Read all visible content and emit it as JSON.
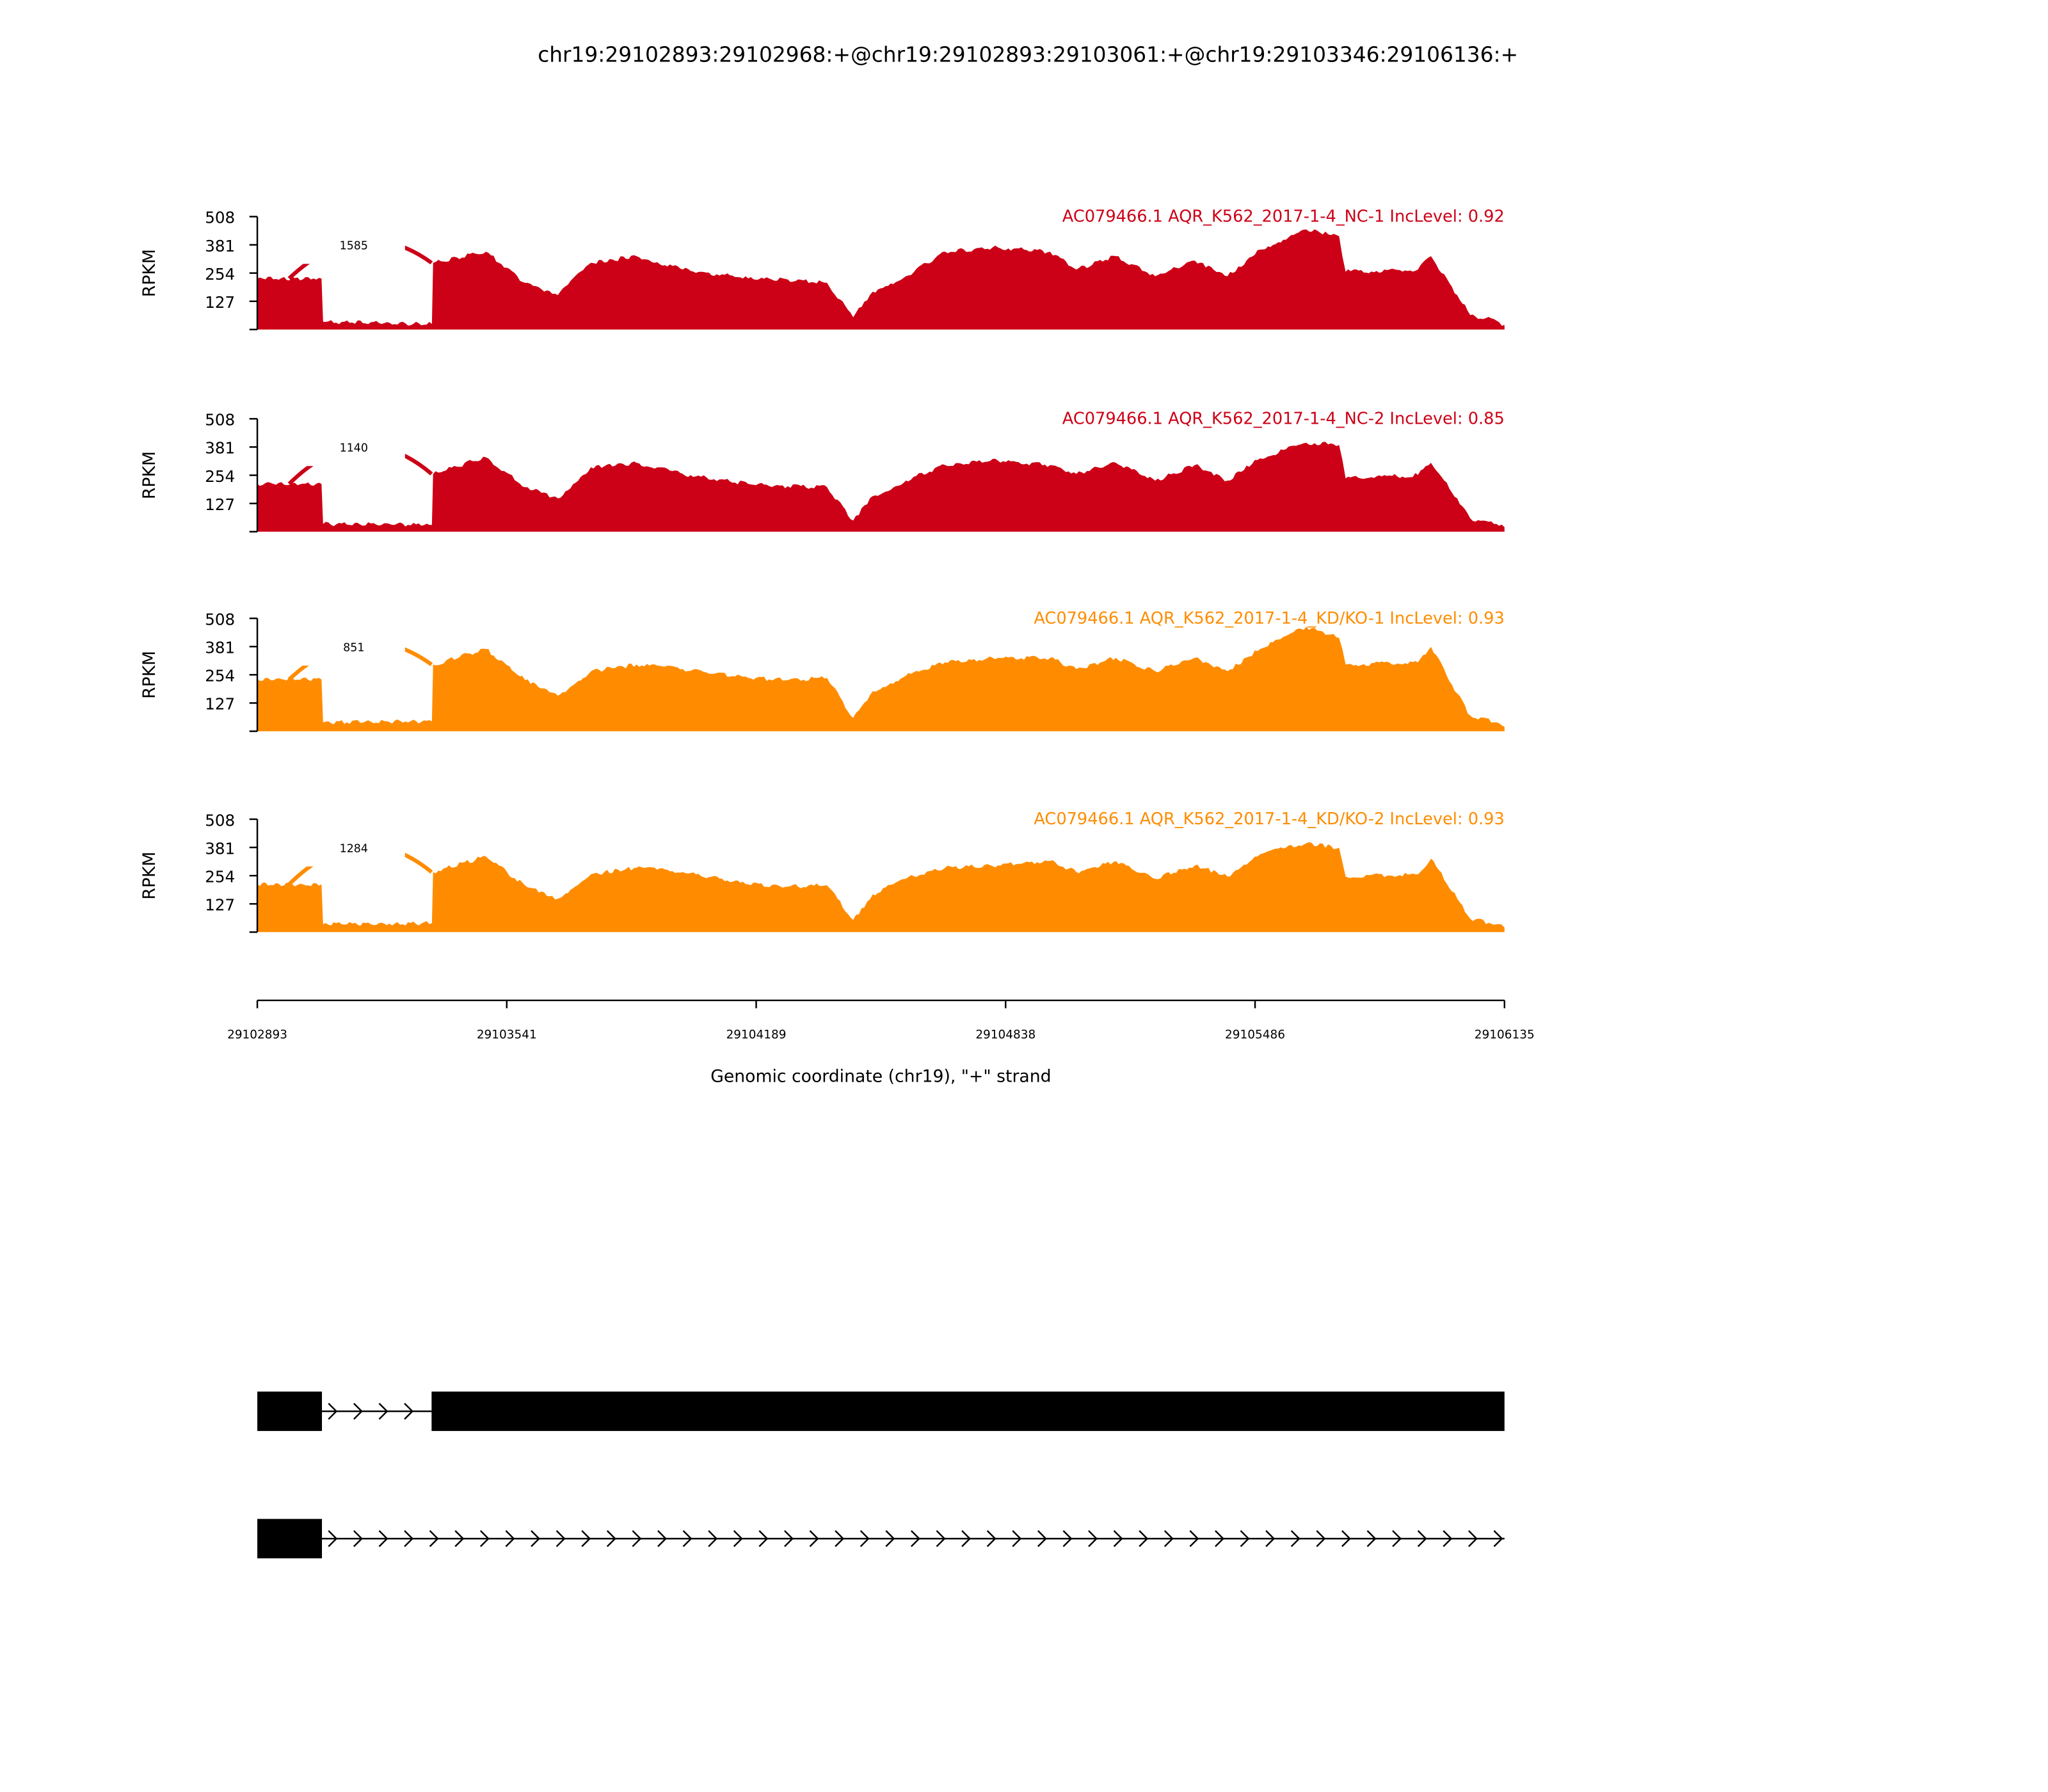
{
  "chart_data": {
    "type": "area",
    "title": "chr19:29102893:29102968:+@chr19:29102893:29103061:+@chr19:29103346:29106136:+",
    "xlabel": "Genomic coordinate (chr19), \"+\" strand",
    "ylabel": "RPKM",
    "xlim": [
      29102893,
      29106135
    ],
    "ylim": [
      0,
      508
    ],
    "x_ticks": [
      "29102893",
      "29103541",
      "29104189",
      "29104838",
      "29105486",
      "29106135"
    ],
    "y_ticks": [
      "127",
      "254",
      "381",
      "508"
    ],
    "positions": [
      29102893,
      29103060,
      29103064,
      29103347,
      29103350,
      29103487,
      29103589,
      29103674,
      29103760,
      29103879,
      29103999,
      29104169,
      29104272,
      29104374,
      29104442,
      29104493,
      29104579,
      29104681,
      29104818,
      29104954,
      29105022,
      29105125,
      29105227,
      29105330,
      29105415,
      29105500,
      29105620,
      29105705,
      29105722,
      29105910,
      29105944,
      29106012,
      29106046,
      29106114,
      29106135
    ],
    "series": [
      {
        "name": "AC079466.1 AQR_K562_2017-1-4_NC-1 IncLevel: 0.92",
        "color": "#cc0016",
        "junction": {
          "start": 29103061,
          "end": 29103346,
          "count": "1585"
        },
        "values": [
          230,
          230,
          35,
          25,
          300,
          350,
          210,
          155,
          300,
          330,
          270,
          230,
          225,
          210,
          55,
          170,
          240,
          350,
          370,
          350,
          270,
          330,
          240,
          310,
          240,
          360,
          450,
          420,
          260,
          270,
          330,
          155,
          65,
          40,
          20
        ]
      },
      {
        "name": "AC079466.1 AQR_K562_2017-1-4_NC-2 IncLevel: 0.85",
        "color": "#cc0016",
        "junction": {
          "start": 29103061,
          "end": 29103346,
          "count": "1140"
        },
        "values": [
          215,
          215,
          35,
          30,
          260,
          335,
          200,
          150,
          290,
          310,
          260,
          215,
          205,
          200,
          50,
          160,
          230,
          300,
          320,
          300,
          260,
          310,
          230,
          300,
          230,
          330,
          400,
          390,
          240,
          255,
          310,
          150,
          60,
          35,
          20
        ]
      },
      {
        "name": "AC079466.1 AQR_K562_2017-1-4_KD/KO-1 IncLevel: 0.93",
        "color": "#ff8c00",
        "junction": {
          "start": 29103061,
          "end": 29103346,
          "count": "851"
        },
        "values": [
          233,
          233,
          40,
          45,
          300,
          370,
          230,
          160,
          270,
          300,
          280,
          240,
          230,
          240,
          60,
          180,
          250,
          310,
          330,
          330,
          280,
          330,
          270,
          330,
          270,
          370,
          470,
          420,
          300,
          310,
          380,
          170,
          70,
          40,
          20
        ]
      },
      {
        "name": "AC079466.1 AQR_K562_2017-1-4_KD/KO-2 IncLevel: 0.93",
        "color": "#ff8c00",
        "junction": {
          "start": 29103061,
          "end": 29103346,
          "count": "1284"
        },
        "values": [
          215,
          215,
          35,
          40,
          270,
          340,
          210,
          150,
          260,
          290,
          270,
          215,
          205,
          210,
          55,
          170,
          240,
          290,
          300,
          320,
          270,
          320,
          240,
          300,
          250,
          350,
          400,
          380,
          250,
          260,
          330,
          150,
          60,
          35,
          20
        ]
      }
    ],
    "gene_models": [
      {
        "exons": [
          [
            29102893,
            29103061
          ],
          [
            29103346,
            29106135
          ]
        ],
        "strand": "+"
      },
      {
        "exons": [
          [
            29102893,
            29103061
          ]
        ],
        "strand": "+",
        "line_end": 29106135
      }
    ]
  }
}
